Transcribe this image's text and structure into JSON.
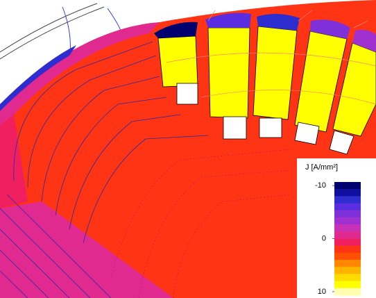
{
  "chart_data": {
    "type": "field-plot",
    "colorbar": {
      "label": "J [A/mm²]",
      "lim": [
        -10,
        10
      ],
      "ticks": [
        -10,
        0,
        10
      ],
      "colors": [
        "#00006e",
        "#1010a0",
        "#2d2dd0",
        "#5a2ee0",
        "#8030d8",
        "#a030d0",
        "#c830b8",
        "#e02a90",
        "#f02060",
        "#ff3414",
        "#ff5000",
        "#ff8800",
        "#ffb400",
        "#ffdc00",
        "#ffff00",
        "#ffffb0"
      ]
    }
  }
}
